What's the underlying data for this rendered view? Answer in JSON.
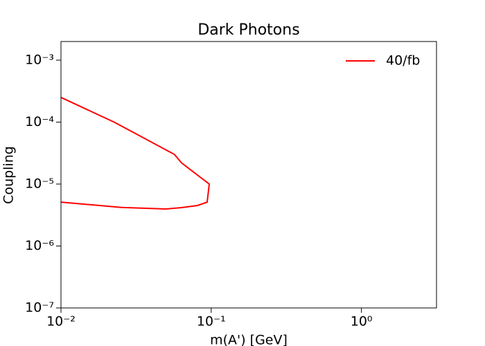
{
  "chart_data": {
    "type": "line",
    "title": "Dark Photons",
    "xlabel": "m(A') [GeV]",
    "ylabel": "Coupling",
    "xscale": "log",
    "yscale": "log",
    "legend": "upper right",
    "xlim": [
      0.01,
      3.16
    ],
    "ylim": [
      1e-07,
      0.002
    ],
    "xticks": [
      {
        "value": 0.01,
        "label": "10⁻²"
      },
      {
        "value": 0.1,
        "label": "10⁻¹"
      },
      {
        "value": 1,
        "label": "10⁰"
      }
    ],
    "yticks": [
      {
        "value": 1e-07,
        "label": "10⁻⁷"
      },
      {
        "value": 1e-06,
        "label": "10⁻⁶"
      },
      {
        "value": 1e-05,
        "label": "10⁻⁵"
      },
      {
        "value": 0.0001,
        "label": "10⁻⁴"
      },
      {
        "value": 0.001,
        "label": "10⁻³"
      }
    ],
    "series": [
      {
        "name": "40/fb",
        "color": "#ff0000",
        "x": [
          0.01,
          0.0226,
          0.0346,
          0.057,
          0.0634,
          0.097,
          0.094,
          0.081,
          0.0634,
          0.05,
          0.0252,
          0.01
        ],
        "values": [
          0.00025,
          0.0001,
          5.75e-05,
          3e-05,
          2.2e-05,
          1e-05,
          5.1e-06,
          4.5e-06,
          4.17e-06,
          3.96e-06,
          4.2e-06,
          5.1e-06
        ]
      }
    ]
  }
}
